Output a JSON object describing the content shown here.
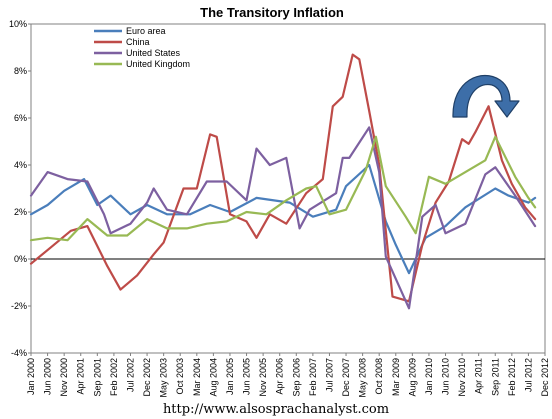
{
  "chart_data": {
    "type": "line",
    "title": "The Transitory Inflation",
    "xlabel": "",
    "ylabel": "",
    "ylim": [
      -4,
      10
    ],
    "xlim": [
      "Jan 2000",
      "Dec 2012"
    ],
    "y_ticks": [
      "10%",
      "8%",
      "6%",
      "4%",
      "2%",
      "0%",
      "-2%",
      "-4%"
    ],
    "x_ticks": [
      "Jan 2000",
      "Jun 2000",
      "Nov 2000",
      "Apr 2001",
      "Sep 2001",
      "Feb 2002",
      "Jul 2002",
      "Dec 2002",
      "May 2003",
      "Oct 2003",
      "Mar 2004",
      "Aug 2004",
      "Jan 2005",
      "Jun 2005",
      "Nov 2005",
      "Apr 2006",
      "Sep 2006",
      "Feb 2007",
      "Jul 2007",
      "Dec 2007",
      "May 2008",
      "Oct 2008",
      "Mar 2009",
      "Aug 2009",
      "Jan 2010",
      "Jun 2010",
      "Nov 2010",
      "Apr 2011",
      "Sep 2011",
      "Feb 2012",
      "Jul 2012",
      "Dec 2012"
    ],
    "grid": false,
    "legend": "top-left",
    "series": [
      {
        "name": "Euro area",
        "color": "#4a7ebb",
        "points": [
          [
            "2000-01",
            1.9
          ],
          [
            "2000-06",
            2.3
          ],
          [
            "2000-11",
            2.9
          ],
          [
            "2001-05",
            3.4
          ],
          [
            "2001-09",
            2.3
          ],
          [
            "2002-01",
            2.7
          ],
          [
            "2002-07",
            1.9
          ],
          [
            "2002-12",
            2.3
          ],
          [
            "2003-06",
            1.9
          ],
          [
            "2004-01",
            1.9
          ],
          [
            "2004-07",
            2.3
          ],
          [
            "2005-01",
            2.0
          ],
          [
            "2005-09",
            2.6
          ],
          [
            "2006-07",
            2.4
          ],
          [
            "2007-02",
            1.8
          ],
          [
            "2007-09",
            2.1
          ],
          [
            "2007-12",
            3.1
          ],
          [
            "2008-07",
            4.0
          ],
          [
            "2008-12",
            1.6
          ],
          [
            "2009-03",
            0.6
          ],
          [
            "2009-07",
            -0.6
          ],
          [
            "2009-12",
            0.9
          ],
          [
            "2010-06",
            1.4
          ],
          [
            "2010-12",
            2.2
          ],
          [
            "2011-09",
            3.0
          ],
          [
            "2012-01",
            2.7
          ],
          [
            "2012-07",
            2.4
          ],
          [
            "2012-09",
            2.6
          ]
        ]
      },
      {
        "name": "China",
        "color": "#be4b48",
        "points": [
          [
            "2000-01",
            -0.2
          ],
          [
            "2000-07",
            0.5
          ],
          [
            "2001-01",
            1.2
          ],
          [
            "2001-06",
            1.4
          ],
          [
            "2001-12",
            -0.3
          ],
          [
            "2002-04",
            -1.3
          ],
          [
            "2002-09",
            -0.7
          ],
          [
            "2003-02",
            0.2
          ],
          [
            "2003-05",
            0.7
          ],
          [
            "2003-11",
            3.0
          ],
          [
            "2004-03",
            3.0
          ],
          [
            "2004-07",
            5.3
          ],
          [
            "2004-09",
            5.2
          ],
          [
            "2005-01",
            1.9
          ],
          [
            "2005-06",
            1.6
          ],
          [
            "2005-09",
            0.9
          ],
          [
            "2006-01",
            1.9
          ],
          [
            "2006-06",
            1.5
          ],
          [
            "2006-12",
            2.8
          ],
          [
            "2007-05",
            3.4
          ],
          [
            "2007-08",
            6.5
          ],
          [
            "2007-11",
            6.9
          ],
          [
            "2008-02",
            8.7
          ],
          [
            "2008-04",
            8.5
          ],
          [
            "2008-07",
            6.3
          ],
          [
            "2008-10",
            4.0
          ],
          [
            "2008-12",
            1.2
          ],
          [
            "2009-02",
            -1.6
          ],
          [
            "2009-07",
            -1.8
          ],
          [
            "2009-11",
            0.6
          ],
          [
            "2010-03",
            2.4
          ],
          [
            "2010-07",
            3.3
          ],
          [
            "2010-11",
            5.1
          ],
          [
            "2011-01",
            4.9
          ],
          [
            "2011-03",
            5.4
          ],
          [
            "2011-07",
            6.5
          ],
          [
            "2011-11",
            4.2
          ],
          [
            "2012-02",
            3.2
          ],
          [
            "2012-06",
            2.2
          ],
          [
            "2012-09",
            1.7
          ]
        ]
      },
      {
        "name": "United States",
        "color": "#7d60a0",
        "points": [
          [
            "2000-01",
            2.7
          ],
          [
            "2000-06",
            3.7
          ],
          [
            "2000-12",
            3.4
          ],
          [
            "2001-06",
            3.3
          ],
          [
            "2001-11",
            1.9
          ],
          [
            "2002-01",
            1.1
          ],
          [
            "2002-07",
            1.5
          ],
          [
            "2002-12",
            2.4
          ],
          [
            "2003-02",
            3.0
          ],
          [
            "2003-06",
            2.1
          ],
          [
            "2003-12",
            1.9
          ],
          [
            "2004-06",
            3.3
          ],
          [
            "2004-12",
            3.3
          ],
          [
            "2005-06",
            2.5
          ],
          [
            "2005-09",
            4.7
          ],
          [
            "2006-01",
            4.0
          ],
          [
            "2006-06",
            4.3
          ],
          [
            "2006-10",
            1.3
          ],
          [
            "2007-01",
            2.1
          ],
          [
            "2007-09",
            2.8
          ],
          [
            "2007-11",
            4.3
          ],
          [
            "2008-01",
            4.3
          ],
          [
            "2008-07",
            5.6
          ],
          [
            "2008-10",
            3.7
          ],
          [
            "2008-12",
            0.1
          ],
          [
            "2009-07",
            -2.1
          ],
          [
            "2009-11",
            1.8
          ],
          [
            "2010-03",
            2.3
          ],
          [
            "2010-06",
            1.1
          ],
          [
            "2010-12",
            1.5
          ],
          [
            "2011-06",
            3.6
          ],
          [
            "2011-09",
            3.9
          ],
          [
            "2012-03",
            2.7
          ],
          [
            "2012-09",
            1.4
          ]
        ]
      },
      {
        "name": "United Kingdom",
        "color": "#98b954",
        "points": [
          [
            "2000-01",
            0.8
          ],
          [
            "2000-06",
            0.9
          ],
          [
            "2000-12",
            0.8
          ],
          [
            "2001-06",
            1.7
          ],
          [
            "2001-12",
            1.0
          ],
          [
            "2002-06",
            1.0
          ],
          [
            "2002-12",
            1.7
          ],
          [
            "2003-06",
            1.3
          ],
          [
            "2003-12",
            1.3
          ],
          [
            "2004-06",
            1.5
          ],
          [
            "2004-12",
            1.6
          ],
          [
            "2005-06",
            2.0
          ],
          [
            "2005-12",
            1.9
          ],
          [
            "2006-06",
            2.5
          ],
          [
            "2006-12",
            3.0
          ],
          [
            "2007-03",
            3.1
          ],
          [
            "2007-07",
            1.9
          ],
          [
            "2007-12",
            2.1
          ],
          [
            "2008-06",
            3.8
          ],
          [
            "2008-09",
            5.2
          ],
          [
            "2008-12",
            3.1
          ],
          [
            "2009-06",
            1.8
          ],
          [
            "2009-09",
            1.1
          ],
          [
            "2010-01",
            3.5
          ],
          [
            "2010-06",
            3.2
          ],
          [
            "2010-12",
            3.7
          ],
          [
            "2011-06",
            4.2
          ],
          [
            "2011-09",
            5.2
          ],
          [
            "2012-03",
            3.5
          ],
          [
            "2012-07",
            2.6
          ],
          [
            "2012-09",
            2.2
          ]
        ]
      }
    ]
  },
  "footer": {
    "url": "http://www.alsosprachanalyst.com"
  }
}
